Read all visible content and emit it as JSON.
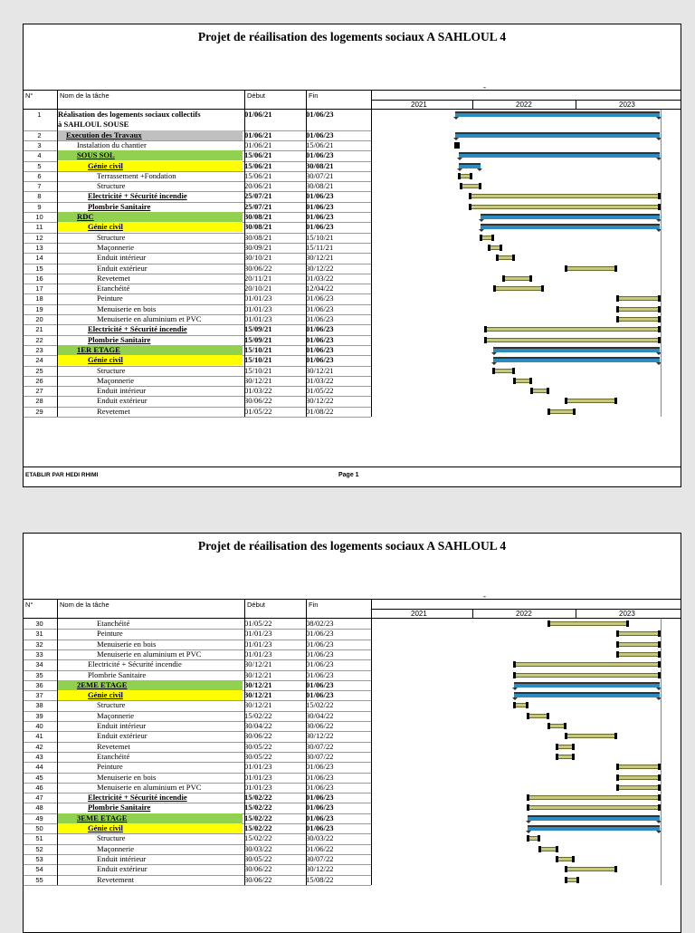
{
  "columns": {
    "num": "N°",
    "name": "Nom de la tâche",
    "start": "Début",
    "end": "Fin"
  },
  "years": [
    "2021",
    "2022",
    "2023"
  ],
  "pages": [
    {
      "title": "Projet de réailisation  des logements sociaux A  SAHLOUL 4",
      "dash": "-",
      "footer_left": "ETABLIR PAR HEDI  RHIMI",
      "footer_page": "Page 1",
      "rows": [
        {
          "num": "1",
          "name": "Réalisation des logements sociaux collectifs",
          "name2": "à SAHLOUL SOUSE",
          "start": "01/06/21",
          "end": "01/06/23",
          "bold": true,
          "indent": 0,
          "type": "summary",
          "s": "01/06/21",
          "e": "01/06/23"
        },
        {
          "num": "2",
          "name": "Execution des Travaux",
          "start": "01/06/21",
          "end": "01/06/23",
          "bold": true,
          "underline": true,
          "indent": 1,
          "hl": "gray",
          "type": "summary",
          "s": "01/06/21",
          "e": "01/06/23"
        },
        {
          "num": "3",
          "name": "Instalation du chantier",
          "start": "01/06/21",
          "end": "15/06/21",
          "bold": false,
          "indent": 2,
          "type": "task",
          "s": "01/06/21",
          "e": "15/06/21"
        },
        {
          "num": "4",
          "name": "SOUS SOL",
          "start": "15/06/21",
          "end": "01/06/23",
          "bold": true,
          "underline": true,
          "indent": 2,
          "hl": "green",
          "type": "summary",
          "s": "15/06/21",
          "e": "01/06/23"
        },
        {
          "num": "5",
          "name": "Génie civil",
          "start": "15/06/21",
          "end": "30/08/21",
          "bold": true,
          "underline": true,
          "indent": 3,
          "hl": "yellow",
          "type": "summary",
          "s": "15/06/21",
          "e": "30/08/21"
        },
        {
          "num": "6",
          "name": "Terrassement +Fondation",
          "start": "15/06/21",
          "end": "30/07/21",
          "indent": 4,
          "type": "task",
          "s": "15/06/21",
          "e": "30/07/21"
        },
        {
          "num": "7",
          "name": "Structure",
          "start": "20/06/21",
          "end": "30/08/21",
          "indent": 4,
          "type": "task",
          "s": "20/06/21",
          "e": "30/08/21"
        },
        {
          "num": "8",
          "name": "Electricité + Sécurité incendie",
          "start": "25/07/21",
          "end": "01/06/23",
          "bold": true,
          "underline": true,
          "indent": 3,
          "type": "task",
          "s": "25/07/21",
          "e": "01/06/23"
        },
        {
          "num": "9",
          "name": "Plombrie Sanitaire ",
          "start": "25/07/21",
          "end": "01/06/23",
          "bold": true,
          "underline": true,
          "indent": 3,
          "type": "task",
          "s": "25/07/21",
          "e": "01/06/23"
        },
        {
          "num": "10",
          "name": "RDC",
          "start": "30/08/21",
          "end": "01/06/23",
          "bold": true,
          "underline": true,
          "indent": 2,
          "hl": "green",
          "type": "summary",
          "s": "30/08/21",
          "e": "01/06/23"
        },
        {
          "num": "11",
          "name": "Génie civil",
          "start": "30/08/21",
          "end": "01/06/23",
          "bold": true,
          "underline": true,
          "indent": 3,
          "hl": "yellow",
          "type": "summary",
          "s": "30/08/21",
          "e": "01/06/23"
        },
        {
          "num": "12",
          "name": "Structure",
          "start": "30/08/21",
          "end": "15/10/21",
          "indent": 4,
          "type": "task",
          "s": "30/08/21",
          "e": "15/10/21"
        },
        {
          "num": "13",
          "name": "Maçonnerie",
          "start": "30/09/21",
          "end": "15/11/21",
          "indent": 4,
          "type": "task",
          "s": "30/09/21",
          "e": "15/11/21"
        },
        {
          "num": "14",
          "name": "Enduit intérieur",
          "start": "30/10/21",
          "end": "30/12/21",
          "indent": 4,
          "type": "task",
          "s": "30/10/21",
          "e": "30/12/21"
        },
        {
          "num": "15",
          "name": "Enduit extérieur",
          "start": "30/06/22",
          "end": "30/12/22",
          "indent": 4,
          "type": "task",
          "s": "30/06/22",
          "e": "30/12/22"
        },
        {
          "num": "16",
          "name": "Revetemet",
          "start": "20/11/21",
          "end": "01/03/22",
          "indent": 4,
          "type": "task",
          "s": "20/11/21",
          "e": "01/03/22"
        },
        {
          "num": "17",
          "name": "Etanchéité",
          "start": "20/10/21",
          "end": "12/04/22",
          "indent": 4,
          "type": "task",
          "s": "20/10/21",
          "e": "12/04/22"
        },
        {
          "num": "18",
          "name": "Peinture",
          "start": "01/01/23",
          "end": "01/06/23",
          "indent": 4,
          "type": "task",
          "s": "01/01/23",
          "e": "01/06/23"
        },
        {
          "num": "19",
          "name": "Menuiserie en bois",
          "start": "01/01/23",
          "end": "01/06/23",
          "indent": 4,
          "type": "task",
          "s": "01/01/23",
          "e": "01/06/23"
        },
        {
          "num": "20",
          "name": "Menuiserie en aluminium et PVC",
          "start": "01/01/23",
          "end": "01/06/23",
          "indent": 4,
          "type": "task",
          "s": "01/01/23",
          "e": "01/06/23"
        },
        {
          "num": "21",
          "name": "Electricité + Sécurité incendie",
          "start": "15/09/21",
          "end": "01/06/23",
          "bold": true,
          "underline": true,
          "indent": 3,
          "type": "task",
          "s": "15/09/21",
          "e": "01/06/23"
        },
        {
          "num": "22",
          "name": "Plombrie Sanitaire ",
          "start": "15/09/21",
          "end": "01/06/23",
          "bold": true,
          "underline": true,
          "indent": 3,
          "type": "task",
          "s": "15/09/21",
          "e": "01/06/23"
        },
        {
          "num": "23",
          "name": "1ER ETAGE",
          "start": "15/10/21",
          "end": "01/06/23",
          "bold": true,
          "underline": true,
          "indent": 2,
          "hl": "green",
          "type": "summary",
          "s": "15/10/21",
          "e": "01/06/23"
        },
        {
          "num": "24",
          "name": "Génie civil",
          "start": "15/10/21",
          "end": "01/06/23",
          "bold": true,
          "underline": true,
          "indent": 3,
          "hl": "yellow",
          "type": "summary",
          "s": "15/10/21",
          "e": "01/06/23"
        },
        {
          "num": "25",
          "name": "Structure",
          "start": "15/10/21",
          "end": "30/12/21",
          "indent": 4,
          "type": "task",
          "s": "15/10/21",
          "e": "30/12/21"
        },
        {
          "num": "26",
          "name": "Maçonnerie",
          "start": "30/12/21",
          "end": "01/03/22",
          "indent": 4,
          "type": "task",
          "s": "30/12/21",
          "e": "01/03/22"
        },
        {
          "num": "27",
          "name": "Enduit intérieur",
          "start": "01/03/22",
          "end": "01/05/22",
          "indent": 4,
          "type": "task",
          "s": "01/03/22",
          "e": "01/05/22"
        },
        {
          "num": "28",
          "name": "Enduit extérieur",
          "start": "30/06/22",
          "end": "30/12/22",
          "indent": 4,
          "type": "task",
          "s": "30/06/22",
          "e": "30/12/22"
        },
        {
          "num": "29",
          "name": "Revetemet",
          "start": "01/05/22",
          "end": "01/08/22",
          "indent": 4,
          "type": "task",
          "s": "01/05/22",
          "e": "01/08/22"
        }
      ]
    },
    {
      "title": "Projet de réailisation  des logements sociaux A  SAHLOUL 4",
      "dash": "-",
      "rows": [
        {
          "num": "30",
          "name": "Etanchéité",
          "start": "01/05/22",
          "end": "08/02/23",
          "indent": 4,
          "type": "task",
          "s": "01/05/22",
          "e": "08/02/23"
        },
        {
          "num": "31",
          "name": "Peinture",
          "start": "01/01/23",
          "end": "01/06/23",
          "indent": 4,
          "type": "task",
          "s": "01/01/23",
          "e": "01/06/23"
        },
        {
          "num": "32",
          "name": "Menuiserie en bois",
          "start": "01/01/23",
          "end": "01/06/23",
          "indent": 4,
          "type": "task",
          "s": "01/01/23",
          "e": "01/06/23"
        },
        {
          "num": "33",
          "name": "Menuiserie en aluminium et PVC",
          "start": "01/01/23",
          "end": "01/06/23",
          "indent": 4,
          "type": "task",
          "s": "01/01/23",
          "e": "01/06/23"
        },
        {
          "num": "34",
          "name": "Electricité + Sécurité incendie",
          "start": "30/12/21",
          "end": "01/06/23",
          "indent": 3,
          "type": "task",
          "s": "30/12/21",
          "e": "01/06/23"
        },
        {
          "num": "35",
          "name": "Plombrie Sanitaire",
          "start": "30/12/21",
          "end": "01/06/23",
          "indent": 3,
          "type": "task",
          "s": "30/12/21",
          "e": "01/06/23"
        },
        {
          "num": "36",
          "name": "2EME ETAGE",
          "start": "30/12/21",
          "end": "01/06/23",
          "bold": true,
          "underline": true,
          "indent": 2,
          "hl": "green",
          "type": "summary",
          "s": "30/12/21",
          "e": "01/06/23"
        },
        {
          "num": "37",
          "name": "Génie civil",
          "start": "30/12/21",
          "end": "01/06/23",
          "bold": true,
          "underline": true,
          "indent": 3,
          "hl": "yellow",
          "type": "summary",
          "s": "30/12/21",
          "e": "01/06/23"
        },
        {
          "num": "38",
          "name": "Structure",
          "start": "30/12/21",
          "end": "15/02/22",
          "indent": 4,
          "type": "task",
          "s": "30/12/21",
          "e": "15/02/22"
        },
        {
          "num": "39",
          "name": "Maçonnerie",
          "start": "15/02/22",
          "end": "30/04/22",
          "indent": 4,
          "type": "task",
          "s": "15/02/22",
          "e": "30/04/22"
        },
        {
          "num": "40",
          "name": "Enduit intérieur",
          "start": "30/04/22",
          "end": "30/06/22",
          "indent": 4,
          "type": "task",
          "s": "30/04/22",
          "e": "30/06/22"
        },
        {
          "num": "41",
          "name": "Enduit extérieur",
          "start": "30/06/22",
          "end": "30/12/22",
          "indent": 4,
          "type": "task",
          "s": "30/06/22",
          "e": "30/12/22"
        },
        {
          "num": "42",
          "name": "Revetemet",
          "start": "30/05/22",
          "end": "30/07/22",
          "indent": 4,
          "type": "task",
          "s": "30/05/22",
          "e": "30/07/22"
        },
        {
          "num": "43",
          "name": "Etanchéité",
          "start": "30/05/22",
          "end": "30/07/22",
          "indent": 4,
          "type": "task",
          "s": "30/05/22",
          "e": "30/07/22"
        },
        {
          "num": "44",
          "name": "Peinture",
          "start": "01/01/23",
          "end": "01/06/23",
          "indent": 4,
          "type": "task",
          "s": "01/01/23",
          "e": "01/06/23"
        },
        {
          "num": "45",
          "name": "Menuiserie en bois",
          "start": "01/01/23",
          "end": "01/06/23",
          "indent": 4,
          "type": "task",
          "s": "01/01/23",
          "e": "01/06/23"
        },
        {
          "num": "46",
          "name": "Menuiserie en aluminium et PVC",
          "start": "01/01/23",
          "end": "01/06/23",
          "indent": 4,
          "type": "task",
          "s": "01/01/23",
          "e": "01/06/23"
        },
        {
          "num": "47",
          "name": "Electricité + Sécurité incendie",
          "start": "15/02/22",
          "end": "01/06/23",
          "bold": true,
          "underline": true,
          "indent": 3,
          "type": "task",
          "s": "15/02/22",
          "e": "01/06/23"
        },
        {
          "num": "48",
          "name": "Plombrie Sanitaire ",
          "start": "15/02/22",
          "end": "01/06/23",
          "bold": true,
          "underline": true,
          "indent": 3,
          "type": "task",
          "s": "15/02/22",
          "e": "01/06/23"
        },
        {
          "num": "49",
          "name": "3EME ETAGE",
          "start": "15/02/22",
          "end": "01/06/23",
          "bold": true,
          "underline": true,
          "indent": 2,
          "hl": "green",
          "type": "summary",
          "s": "15/02/22",
          "e": "01/06/23"
        },
        {
          "num": "50",
          "name": "Génie civil",
          "start": "15/02/22",
          "end": "01/06/23",
          "bold": true,
          "underline": true,
          "indent": 3,
          "hl": "yellow",
          "type": "summary",
          "s": "15/02/22",
          "e": "01/06/23"
        },
        {
          "num": "51",
          "name": "Structure",
          "start": "15/02/22",
          "end": "30/03/22",
          "indent": 4,
          "type": "task",
          "s": "15/02/22",
          "e": "30/03/22"
        },
        {
          "num": "52",
          "name": "Maçonnerie",
          "start": "30/03/22",
          "end": "01/06/22",
          "indent": 4,
          "type": "task",
          "s": "30/03/22",
          "e": "01/06/22"
        },
        {
          "num": "53",
          "name": "Enduit intérieur",
          "start": "30/05/22",
          "end": "30/07/22",
          "indent": 4,
          "type": "task",
          "s": "30/05/22",
          "e": "30/07/22"
        },
        {
          "num": "54",
          "name": "Enduit extérieur",
          "start": "30/06/22",
          "end": "30/12/22",
          "indent": 4,
          "type": "task",
          "s": "30/06/22",
          "e": "30/12/22"
        },
        {
          "num": "55",
          "name": "Revetement",
          "start": "30/06/22",
          "end": "15/08/22",
          "indent": 4,
          "type": "task",
          "s": "30/06/22",
          "e": "15/08/22"
        }
      ]
    }
  ],
  "colors": {
    "green": "#92d050",
    "yellow": "#ffff00",
    "gray": "#c0c0c0",
    "task_bar": "#c6c97d",
    "summary_bar": "#2e8bc0"
  }
}
